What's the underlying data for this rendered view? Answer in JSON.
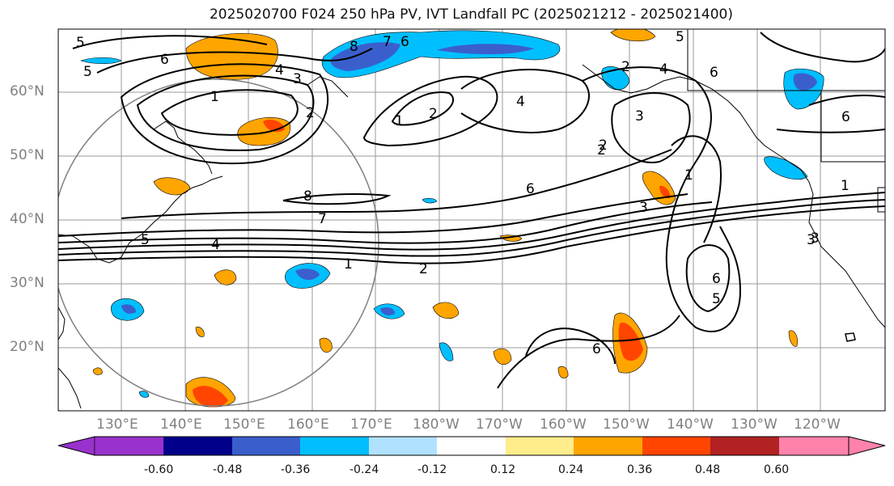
{
  "title": "2025020700 F024 250 hPa PV, IVT Landfall PC (2025021212 - 2025021400)",
  "lat_labels": [
    "60°N",
    "50°N",
    "40°N",
    "30°N",
    "20°N"
  ],
  "lon_labels": [
    "130°E",
    "140°E",
    "150°E",
    "160°E",
    "170°E",
    "180°W",
    "170°W",
    "160°W",
    "150°W",
    "140°W",
    "130°W",
    "120°W"
  ],
  "colorbar": {
    "colors": [
      "#9932cc",
      "#00008b",
      "#3a5fcd",
      "#00bfff",
      "#b0e2ff",
      "#ffffff",
      "#ffec8b",
      "#ffa500",
      "#ff4500",
      "#b22222",
      "#ff82ab"
    ],
    "tick_labels": [
      "-0.60",
      "-0.48",
      "-0.36",
      "-0.24",
      "-0.12",
      "0.12",
      "0.24",
      "0.36",
      "0.48",
      "0.60"
    ]
  },
  "contour_labels": [
    "5",
    "6",
    "5",
    "4",
    "3",
    "1",
    "2",
    "8",
    "7",
    "6",
    "2",
    "4",
    "2",
    "3",
    "4",
    "5",
    "6",
    "6",
    "1",
    "8",
    "7",
    "6",
    "5",
    "4",
    "1",
    "2",
    "3",
    "1",
    "2",
    "3",
    "6",
    "5",
    "6",
    "1",
    "3",
    "2"
  ]
}
